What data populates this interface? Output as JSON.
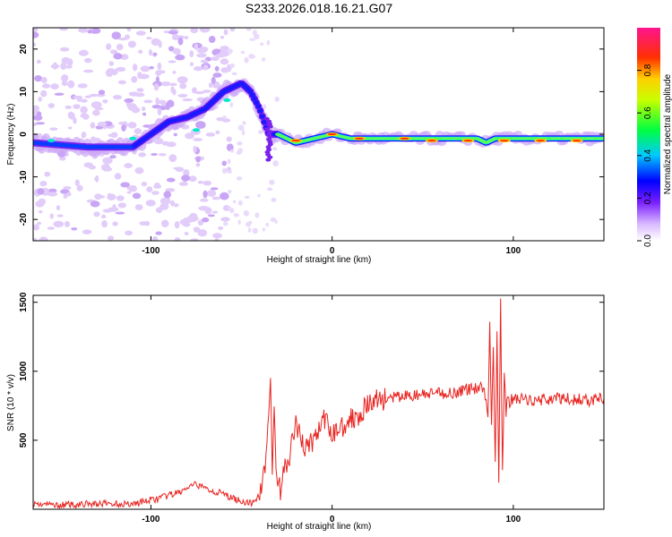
{
  "title": "S233.2026.018.16.21.G07",
  "chart_data": [
    {
      "type": "heatmap",
      "name": "spectrogram",
      "xlabel": "Height of straight line (km)",
      "ylabel": "Frequency (Hz)",
      "xlim": [
        -165,
        150
      ],
      "ylim": [
        -25,
        25
      ],
      "xticks": [
        -100,
        0,
        100
      ],
      "yticks": [
        -20,
        -10,
        0,
        10,
        20
      ],
      "colorbar": {
        "label": "Normalized spectral amplitude",
        "range": [
          0,
          1
        ],
        "ticks": [
          0.0,
          0.2,
          0.4,
          0.6,
          0.8
        ]
      },
      "ridge": {
        "x": [
          -165,
          -150,
          -135,
          -120,
          -110,
          -100,
          -90,
          -80,
          -70,
          -60,
          -50,
          -45,
          -40,
          -35,
          -30,
          -25,
          -20,
          -10,
          0,
          10,
          20,
          40,
          60,
          80,
          85,
          90,
          100,
          120,
          150
        ],
        "y": [
          -2,
          -2.5,
          -3,
          -3,
          -3,
          0,
          3,
          4,
          6,
          10,
          12,
          10,
          6,
          0,
          0,
          -1,
          -2,
          -1,
          0,
          -1,
          -1,
          -1,
          -1,
          -1,
          -2,
          -1,
          -1,
          -1,
          -1
        ]
      }
    },
    {
      "type": "line",
      "name": "snr",
      "xlabel": "Height of straight line (km)",
      "ylabel": "SNR (10 * v/v)",
      "xlim": [
        -165,
        150
      ],
      "ylim": [
        0,
        1550
      ],
      "xticks": [
        -100,
        0,
        100
      ],
      "yticks": [
        500,
        1000,
        1500
      ],
      "series": [
        {
          "name": "SNR",
          "color": "#e8231f",
          "x": [
            -165,
            -150,
            -130,
            -110,
            -95,
            -85,
            -80,
            -75,
            -70,
            -65,
            -60,
            -55,
            -50,
            -45,
            -40,
            -38,
            -36,
            -35,
            -34,
            -33,
            -32,
            -31,
            -30,
            -28,
            -26,
            -24,
            -22,
            -20,
            -15,
            -10,
            -5,
            0,
            5,
            10,
            15,
            20,
            25,
            30,
            40,
            50,
            60,
            70,
            75,
            80,
            82,
            84,
            86,
            87,
            88,
            89,
            90,
            91,
            92,
            93,
            94,
            95,
            96,
            97,
            98,
            100,
            110,
            120,
            130,
            140,
            150
          ],
          "y": [
            40,
            30,
            40,
            40,
            80,
            120,
            150,
            180,
            150,
            130,
            110,
            80,
            60,
            40,
            100,
            250,
            450,
            750,
            950,
            300,
            700,
            250,
            200,
            100,
            400,
            300,
            500,
            600,
            450,
            500,
            650,
            550,
            600,
            650,
            700,
            750,
            800,
            800,
            820,
            830,
            840,
            850,
            870,
            880,
            900,
            850,
            700,
            1350,
            600,
            1200,
            300,
            1300,
            200,
            1560,
            250,
            950,
            700,
            850,
            780,
            800,
            790,
            800,
            800,
            790,
            800
          ]
        }
      ]
    }
  ]
}
